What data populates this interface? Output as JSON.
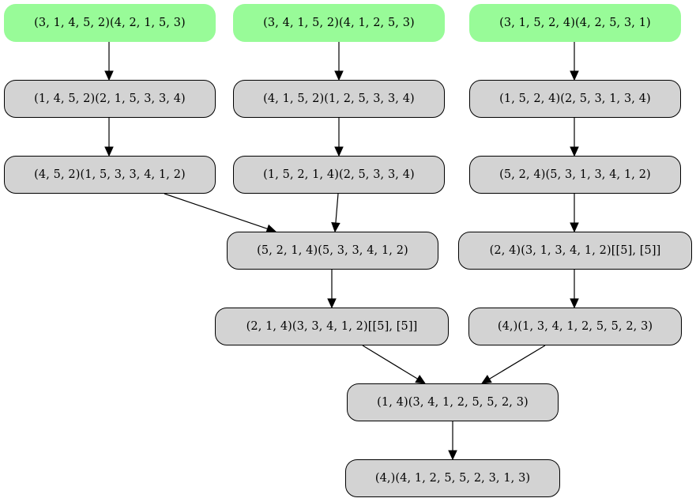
{
  "colors": {
    "start_fill": "#98fb98",
    "node_fill": "#d3d3d3",
    "edge": "#000000"
  },
  "nodes": [
    {
      "id": "n1",
      "label": "(3, 1, 4, 5, 2)(4, 2, 1, 5, 3)",
      "kind": "start"
    },
    {
      "id": "n2",
      "label": "(3, 4, 1, 5, 2)(4, 1, 2, 5, 3)",
      "kind": "start"
    },
    {
      "id": "n3",
      "label": "(3, 1, 5, 2, 4)(4, 2, 5, 3, 1)",
      "kind": "start"
    },
    {
      "id": "n4",
      "label": "(1, 4, 5, 2)(2, 1, 5, 3, 3, 4)",
      "kind": "inner"
    },
    {
      "id": "n5",
      "label": "(4, 1, 5, 2)(1, 2, 5, 3, 3, 4)",
      "kind": "inner"
    },
    {
      "id": "n6",
      "label": "(1, 5, 2, 4)(2, 5, 3, 1, 3, 4)",
      "kind": "inner"
    },
    {
      "id": "n7",
      "label": "(4, 5, 2)(1, 5, 3, 3, 4, 1, 2)",
      "kind": "inner"
    },
    {
      "id": "n8",
      "label": "(1, 5, 2, 1, 4)(2, 5, 3, 3, 4)",
      "kind": "inner"
    },
    {
      "id": "n9",
      "label": "(5, 2, 4)(5, 3, 1, 3, 4, 1, 2)",
      "kind": "inner"
    },
    {
      "id": "n10",
      "label": "(5, 2, 1, 4)(5, 3, 3, 4, 1, 2)",
      "kind": "inner"
    },
    {
      "id": "n11",
      "label": "(2, 4)(3, 1, 3, 4, 1, 2)[[5], [5]]",
      "kind": "inner"
    },
    {
      "id": "n12",
      "label": "(2, 1, 4)(3, 3, 4, 1, 2)[[5], [5]]",
      "kind": "inner"
    },
    {
      "id": "n13",
      "label": "(4,)(1, 3, 4, 1, 2, 5, 5, 2, 3)",
      "kind": "inner"
    },
    {
      "id": "n14",
      "label": "(1, 4)(3, 4, 1, 2, 5, 5, 2, 3)",
      "kind": "inner"
    },
    {
      "id": "n15",
      "label": "(4,)(4, 1, 2, 5, 5, 2, 3, 1, 3)",
      "kind": "inner"
    }
  ],
  "edges": [
    {
      "from": "n1",
      "to": "n4"
    },
    {
      "from": "n2",
      "to": "n5"
    },
    {
      "from": "n3",
      "to": "n6"
    },
    {
      "from": "n4",
      "to": "n7"
    },
    {
      "from": "n5",
      "to": "n8"
    },
    {
      "from": "n6",
      "to": "n9"
    },
    {
      "from": "n7",
      "to": "n10"
    },
    {
      "from": "n8",
      "to": "n10"
    },
    {
      "from": "n9",
      "to": "n11"
    },
    {
      "from": "n10",
      "to": "n12"
    },
    {
      "from": "n11",
      "to": "n13"
    },
    {
      "from": "n12",
      "to": "n14"
    },
    {
      "from": "n13",
      "to": "n14"
    },
    {
      "from": "n14",
      "to": "n15"
    }
  ]
}
